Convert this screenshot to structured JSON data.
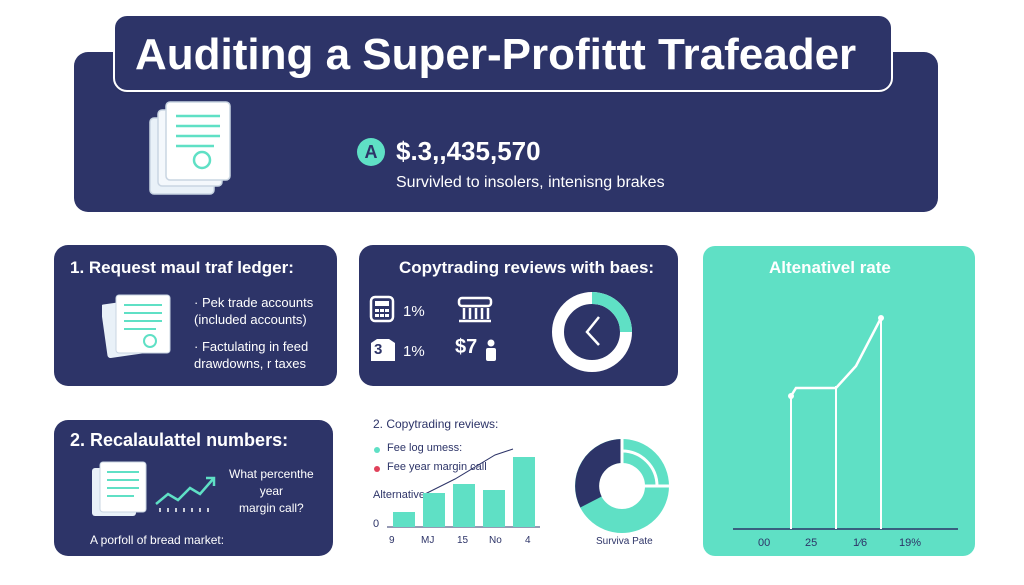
{
  "title": "Auditing a Super-Profittt Trafeader",
  "hero": {
    "badge": "A",
    "amount": "$.3,,435,570",
    "subtitle": "Survivled to insolers, intenisng brakes"
  },
  "card_request": {
    "heading": "1. Request mauI traf ledger:",
    "bullet1": "· Pek trade accounts\n(included accounts)",
    "bullet2": "· Factulating in feed\ndrawdowns, r taxes"
  },
  "card_reviews": {
    "heading": "Copytrading reviews with baes:",
    "stat1": "1%",
    "stat2": "1%",
    "stat3": "$7",
    "badge_num": "3"
  },
  "teal_chart": {
    "title": "Altenativel rate",
    "x_ticks": [
      "00",
      "25",
      "1⁄6",
      "19%"
    ],
    "colors": {
      "line": "#ffffff"
    }
  },
  "card_recalc": {
    "heading": "2. Recalaulattel numbers:",
    "question": "What percenthe\nyear\nmargin call?",
    "footer": "A porfoll of bread market:"
  },
  "mid_chart": {
    "heading": "2. Copytrading reviews:",
    "legend1": "Fee log umess:",
    "legend2": "Fee year margin call",
    "alt_label": "Alternative",
    "zero": "0",
    "x_ticks": [
      "9",
      "MJ",
      "15",
      "No",
      "4"
    ]
  },
  "donut": {
    "label": "Surviva Pate"
  },
  "chart_data": [
    {
      "type": "bar",
      "categories": [
        "9",
        "MJ",
        "15",
        "No",
        "4"
      ],
      "values": [
        1.3,
        3.0,
        3.8,
        3.3,
        6.2
      ],
      "xlabel": "",
      "ylabel": ""
    },
    {
      "type": "line",
      "title": "Altenativel rate",
      "x": [
        "00",
        "25",
        "1⁄6",
        "19%"
      ],
      "y": [
        1.5,
        1.5,
        1.8,
        2.2
      ]
    }
  ]
}
